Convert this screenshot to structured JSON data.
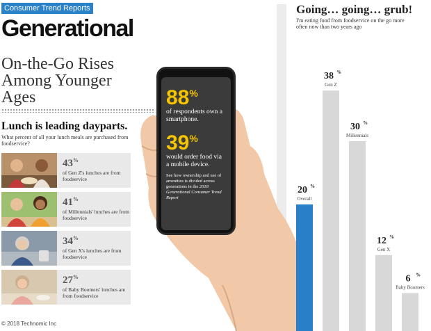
{
  "header": {
    "tag": "Consumer Trend Reports",
    "brand": "Generational"
  },
  "headline": "On-the-Go Rises Among Younger Ages",
  "lunch": {
    "title": "Lunch is leading dayparts.",
    "subtitle": "What percent of all your lunch meals are purchased from foodservice?",
    "items": [
      {
        "value": "43",
        "unit": "%",
        "desc": "of Gen Z's lunches are from foodservice"
      },
      {
        "value": "41",
        "unit": "%",
        "desc": "of Millennials' lunches are from foodservice"
      },
      {
        "value": "34",
        "unit": "%",
        "desc": "of Gen X's lunches are from foodservice"
      },
      {
        "value": "27",
        "unit": "%",
        "desc": "of Baby Boomers' lunches are from foodservice"
      }
    ]
  },
  "phone": {
    "stat1": {
      "value": "88",
      "unit": "%",
      "desc": "of respondents own a smartphone."
    },
    "stat2": {
      "value": "39",
      "unit": "%",
      "desc": "would order food via a mobile device."
    },
    "note_lead": "See how ownership and use of amenities is divided across generations in the ",
    "note_report": "2018 Generational Consumer Trend Report"
  },
  "footer": {
    "copyright": "© 2018 Technomic Inc"
  },
  "colors": {
    "highlight": "#2a7fc9",
    "bar": "#d8d8d8",
    "stat": "#f5c400"
  },
  "chart_data": {
    "type": "bar",
    "title": "Going… going… grub!",
    "subtitle": "I'm eating food from foodservice on the go more often now than two years ago",
    "categories": [
      "Overall",
      "Gen Z",
      "Millennials",
      "Gen X",
      "Baby Boomers"
    ],
    "values": [
      20,
      38,
      30,
      12,
      6
    ],
    "unit": "%",
    "highlight": "Overall",
    "ylim": [
      0,
      40
    ],
    "grid": false,
    "legend": "none"
  }
}
